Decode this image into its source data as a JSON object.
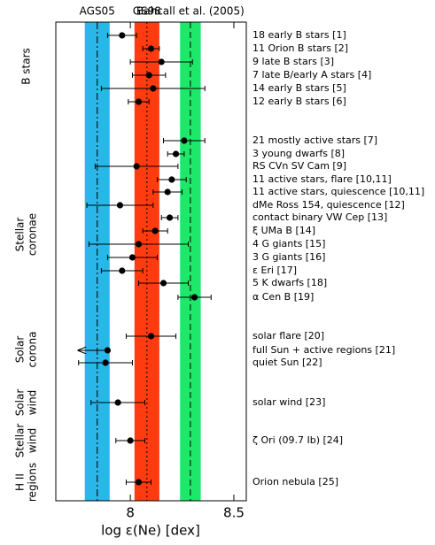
{
  "chart_data": {
    "type": "dot_errorbar",
    "xlabel": "log ε(Ne) [dex]",
    "xlim": [
      7.64,
      8.56
    ],
    "xticks": [
      8,
      8.5
    ],
    "bands": [
      {
        "name": "AGS05",
        "value": 7.84,
        "error": 0.06,
        "color": "#29b6e8",
        "linestyle": "dashdot"
      },
      {
        "name": "GS98",
        "value": 8.08,
        "error": 0.06,
        "color": "#ff3b0f",
        "linestyle": "dotted"
      },
      {
        "name": "Bahcall et al. (2005)",
        "value": 8.29,
        "error": 0.05,
        "color": "#1ee86a",
        "linestyle": "dashed"
      }
    ],
    "groups": [
      {
        "label_lines": [
          "B stars"
        ],
        "points": [
          {
            "label": "18 early B stars [1]",
            "value": 7.96,
            "error": 0.07
          },
          {
            "label": "11 Orion B stars [2]",
            "value": 8.1,
            "error": 0.04
          },
          {
            "label": "9 late B stars [3]",
            "value": 8.15,
            "error": 0.15
          },
          {
            "label": "7 late B/early A stars [4]",
            "value": 8.09,
            "error": 0.08
          },
          {
            "label": "14 early B stars [5]",
            "value": 8.11,
            "error": 0.25
          },
          {
            "label": "12 early B stars [6]",
            "value": 8.04,
            "error": 0.05
          }
        ]
      },
      {
        "label_lines": [
          "Stellar",
          "coronae"
        ],
        "points": [
          {
            "label": "21 mostly active stars [7]",
            "value": 8.26,
            "error": 0.1
          },
          {
            "label": "3 young dwarfs [8]",
            "value": 8.22,
            "error": 0.04
          },
          {
            "label": "RS CVn SV Cam [9]",
            "value": 8.03,
            "error": 0.2
          },
          {
            "label": "11 active stars, flare [10,11]",
            "value": 8.2,
            "error": 0.07
          },
          {
            "label": "11 active stars, quiescence [10,11]",
            "value": 8.18,
            "error": 0.07
          },
          {
            "label": "dMe Ross 154, quiescence [12]",
            "value": 7.95,
            "error": 0.16
          },
          {
            "label": "contact binary VW Cep [13]",
            "value": 8.19,
            "error": 0.04
          },
          {
            "label": "ξ UMa B [14]",
            "value": 8.12,
            "error": 0.06
          },
          {
            "label": "4 G giants [15]",
            "value": 8.04,
            "error": 0.24
          },
          {
            "label": "3 G giants [16]",
            "value": 8.01,
            "error": 0.12
          },
          {
            "label": "ε Eri [17]",
            "value": 7.96,
            "error": 0.1
          },
          {
            "label": "5 K dwarfs [18]",
            "value": 8.16,
            "error": 0.12
          },
          {
            "label": "α Cen B [19]",
            "value": 8.31,
            "error": 0.08
          }
        ]
      },
      {
        "label_lines": [
          "Solar",
          "corona"
        ],
        "points": [
          {
            "label": "solar flare [20]",
            "value": 8.1,
            "error": 0.12
          },
          {
            "label": "full Sun + active regions [21]",
            "value": 7.89,
            "upper_limit": true
          },
          {
            "label": "quiet Sun [22]",
            "value": 7.88,
            "error": 0.13
          }
        ]
      },
      {
        "label_lines": [
          "Solar",
          "wind"
        ],
        "points": [
          {
            "label": "solar wind [23]",
            "value": 7.94,
            "error": 0.13
          }
        ]
      },
      {
        "label_lines": [
          "Stellar",
          "wind"
        ],
        "points": [
          {
            "label": "ζ Ori (09.7 Ib) [24]",
            "value": 8.0,
            "error": 0.07
          }
        ]
      },
      {
        "label_lines": [
          "H II",
          "regions"
        ],
        "points": [
          {
            "label": "Orion nebula [25]",
            "value": 8.04,
            "error": 0.06
          }
        ]
      }
    ]
  }
}
